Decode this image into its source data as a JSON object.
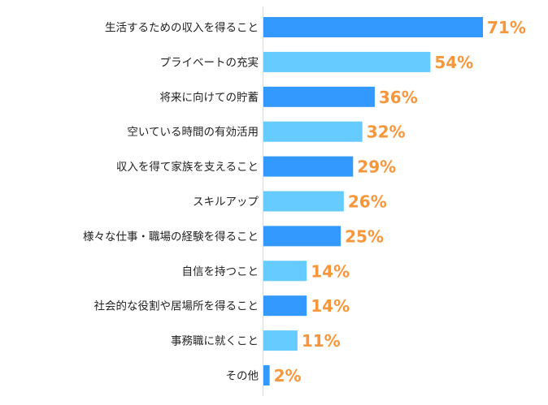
{
  "chart_data": {
    "type": "bar",
    "orientation": "horizontal",
    "categories": [
      "生活するための収入を得ること",
      "プライベートの充実",
      "将来に向けての貯蓄",
      "空いている時間の有効活用",
      "収入を得て家族を支えること",
      "スキルアップ",
      "様々な仕事・職場の経験を得ること",
      "自信を持つこと",
      "社会的な役割や居場所を得ること",
      "事務職に就くこと",
      "その他"
    ],
    "values": [
      71,
      54,
      36,
      32,
      29,
      26,
      25,
      14,
      14,
      11,
      2
    ],
    "value_labels": [
      "71%",
      "54%",
      "36%",
      "32%",
      "29%",
      "26%",
      "25%",
      "14%",
      "14%",
      "11%",
      "2%"
    ],
    "unit": "%",
    "xlim": [
      0,
      71
    ],
    "grid": false,
    "legend": "none",
    "colors": {
      "bar_alternate_a": "#3399ff",
      "bar_alternate_b": "#66ccff",
      "value_label": "#f7963b",
      "axis": "#d9d9d9"
    }
  }
}
